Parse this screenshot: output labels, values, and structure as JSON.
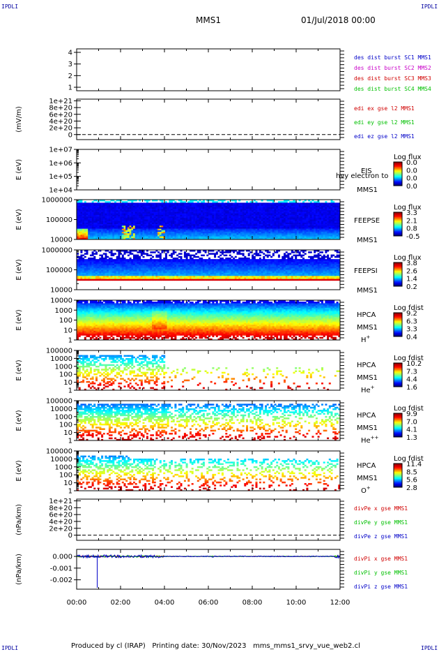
{
  "header": {
    "corner_tag": "IPDLI",
    "title": "MMS1",
    "date": "01/Jul/2018 00:00"
  },
  "footer": {
    "produced_by": "Produced by cl (IRAP)",
    "printing_date": "Printing date: 30/Nov/2023",
    "script_name": "mms_mms1_srvy_vue_web2.cl"
  },
  "colors": {
    "blue": "#0000c8",
    "magenta": "#c800c8",
    "red": "#d00000",
    "green": "#00c000"
  },
  "chart_data": [
    {
      "type": "line",
      "id": "des-dist",
      "ylabel": "",
      "yticks": [
        "1",
        "2",
        "3",
        "4"
      ],
      "ylim": [
        0.7,
        4.3
      ],
      "legend": [
        {
          "label": "des dist burst SC1 MMS1",
          "color": "#0000c8"
        },
        {
          "label": "des dist burst SC2 MMS2",
          "color": "#c800c8"
        },
        {
          "label": "des dist burst SC3 MMS3",
          "color": "#d00000"
        },
        {
          "label": "des dist burst SC4 MMS4",
          "color": "#00c000"
        }
      ]
    },
    {
      "type": "line",
      "id": "edi-efield",
      "ylabel": "(mV/m)",
      "yticks": [
        "0",
        "2e+20",
        "4e+20",
        "6e+20",
        "8e+20",
        "1e+21"
      ],
      "ylim": [
        -1.5e+20,
        1.05e+21
      ],
      "zero_line": true,
      "legend": [
        {
          "label": "edi ex gse l2 MMS1",
          "color": "#d00000"
        },
        {
          "label": "edi ey gse l2 MMS1",
          "color": "#00c000"
        },
        {
          "label": "edi ez gse l2 MMS1",
          "color": "#0000c8"
        }
      ]
    },
    {
      "type": "heatmap",
      "id": "eis",
      "ylabel": "E (eV)",
      "yticks": [
        "1e+04",
        "1e+05",
        "1e+06",
        "1e+07"
      ],
      "scale": "log",
      "filled": false,
      "labels": [
        "EIS",
        "MMS1"
      ],
      "overlay_text": "hvy electron to",
      "colorbar": {
        "title": "Log flux",
        "ticks": [
          "0.0",
          "0.0",
          "0.0",
          "0.0"
        ]
      }
    },
    {
      "type": "heatmap",
      "id": "feepse",
      "ylabel": "E (eV)",
      "yticks": [
        "10000",
        "100000",
        "1000000"
      ],
      "scale": "log",
      "filled": true,
      "pattern": "feeps_e",
      "labels": [
        "FEEPSE",
        "MMS1"
      ],
      "colorbar": {
        "title": "Log flux",
        "ticks": [
          "3.3",
          "2.1",
          "0.8",
          "-0.5"
        ]
      }
    },
    {
      "type": "heatmap",
      "id": "feepsi",
      "ylabel": "E (eV)",
      "yticks": [
        "10000",
        "100000",
        "1000000"
      ],
      "scale": "log",
      "filled": true,
      "pattern": "feeps_i",
      "labels": [
        "FEEPSI",
        "MMS1"
      ],
      "colorbar": {
        "title": "Log flux",
        "ticks": [
          "3.8",
          "2.6",
          "1.4",
          "0.2"
        ]
      }
    },
    {
      "type": "heatmap",
      "id": "hpca-h",
      "ylabel": "E (eV)",
      "yticks": [
        "1",
        "10",
        "100",
        "1000",
        "10000"
      ],
      "scale": "log",
      "filled": true,
      "pattern": "hpca_h",
      "labels": [
        "HPCA",
        "MMS1",
        "H+"
      ],
      "colorbar": {
        "title": "Log fdist",
        "ticks": [
          "9.2",
          "6.3",
          "3.3",
          "0.4"
        ]
      }
    },
    {
      "type": "heatmap",
      "id": "hpca-he",
      "ylabel": "E (eV)",
      "yticks": [
        "1",
        "10",
        "100",
        "1000",
        "10000",
        "100000"
      ],
      "scale": "log",
      "filled": true,
      "pattern": "hpca_he",
      "labels": [
        "HPCA",
        "MMS1",
        "He+"
      ],
      "colorbar": {
        "title": "Log fdist",
        "ticks": [
          "10.2",
          "7.3",
          "4.4",
          "1.6"
        ]
      }
    },
    {
      "type": "heatmap",
      "id": "hpca-he2",
      "ylabel": "E (eV)",
      "yticks": [
        "1",
        "10",
        "100",
        "1000",
        "10000",
        "100000"
      ],
      "scale": "log",
      "filled": true,
      "pattern": "hpca_he2",
      "labels": [
        "HPCA",
        "MMS1",
        "He++"
      ],
      "colorbar": {
        "title": "Log fdist",
        "ticks": [
          "9.9",
          "7.0",
          "4.1",
          "1.3"
        ]
      }
    },
    {
      "type": "heatmap",
      "id": "hpca-o",
      "ylabel": "E (eV)",
      "yticks": [
        "1",
        "10",
        "100",
        "1000",
        "10000",
        "100000"
      ],
      "scale": "log",
      "filled": true,
      "pattern": "hpca_o",
      "labels": [
        "HPCA",
        "MMS1",
        "O+"
      ],
      "colorbar": {
        "title": "Log fdist",
        "ticks": [
          "11.4",
          "8.5",
          "5.6",
          "2.8"
        ]
      }
    },
    {
      "type": "line",
      "id": "divpe",
      "ylabel": "(nPa/km)",
      "yticks": [
        "0",
        "2e+20",
        "4e+20",
        "6e+20",
        "8e+20",
        "1e+21"
      ],
      "ylim": [
        -1.5e+20,
        1.05e+21
      ],
      "zero_line": true,
      "legend": [
        {
          "label": "divPe x gse MMS1",
          "color": "#d00000"
        },
        {
          "label": "divPe y gse MMS1",
          "color": "#00c000"
        },
        {
          "label": "divPe z gse MMS1",
          "color": "#0000c8"
        }
      ]
    },
    {
      "type": "line",
      "id": "divpi",
      "ylabel": "(nPa/km)",
      "yticks": [
        "-0.002",
        "-0.001",
        "0.000"
      ],
      "ylim": [
        -0.0028,
        0.0006
      ],
      "trace": "noise",
      "legend": [
        {
          "label": "divPi x gse MMS1",
          "color": "#d00000"
        },
        {
          "label": "divPi y gse MMS1",
          "color": "#00c000"
        },
        {
          "label": "divPi z gse MMS1",
          "color": "#0000c8"
        }
      ]
    }
  ],
  "time_axis": {
    "ticks": [
      "00:00",
      "02:00",
      "04:00",
      "06:00",
      "08:00",
      "10:00",
      "12:00"
    ]
  }
}
